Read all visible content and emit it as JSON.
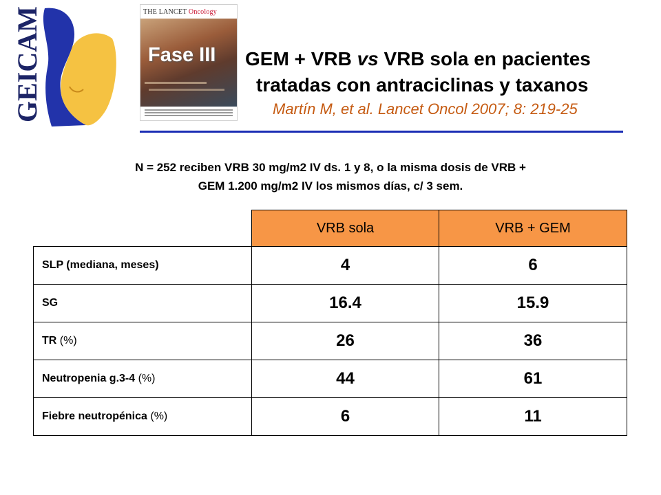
{
  "header": {
    "logo_text": "GEICAM",
    "journal_name": "THE LANCET",
    "journal_section": "Oncology",
    "phase_label": "Fase III",
    "title_line1_a": "GEM + VRB ",
    "title_line1_vs": "vs",
    "title_line1_b": " VRB sola en pacientes",
    "title_line2": "tratadas con antraciclinas y taxanos",
    "citation": "Martín M, et al. Lancet Oncol 2007; 8: 219-25"
  },
  "note": {
    "line1": "N = 252 reciben VRB 30 mg/m2 IV ds. 1 y 8, o la misma dosis de VRB +",
    "line2": "GEM 1.200 mg/m2 IV los mismos días, c/ 3 sem."
  },
  "table": {
    "columns": [
      "VRB sola",
      "VRB + GEM"
    ],
    "rows": [
      {
        "label": "SLP (mediana, meses)",
        "unit": "",
        "vrb": "4",
        "vrb_gem": "6"
      },
      {
        "label": "SG",
        "unit": "",
        "vrb": "16.4",
        "vrb_gem": "15.9"
      },
      {
        "label": "TR ",
        "unit": "(%)",
        "vrb": "26",
        "vrb_gem": "36"
      },
      {
        "label": "Neutropenia g.3-4 ",
        "unit": "(%)",
        "vrb": "44",
        "vrb_gem": "61"
      },
      {
        "label": "Fiebre neutropénica ",
        "unit": "(%)",
        "vrb": "6",
        "vrb_gem": "11"
      }
    ]
  },
  "colors": {
    "header_fill": "#f79646",
    "divider": "#1b2db4",
    "citation": "#c55a11",
    "logo_blue": "#2233aa",
    "logo_yellow": "#f5c242"
  }
}
